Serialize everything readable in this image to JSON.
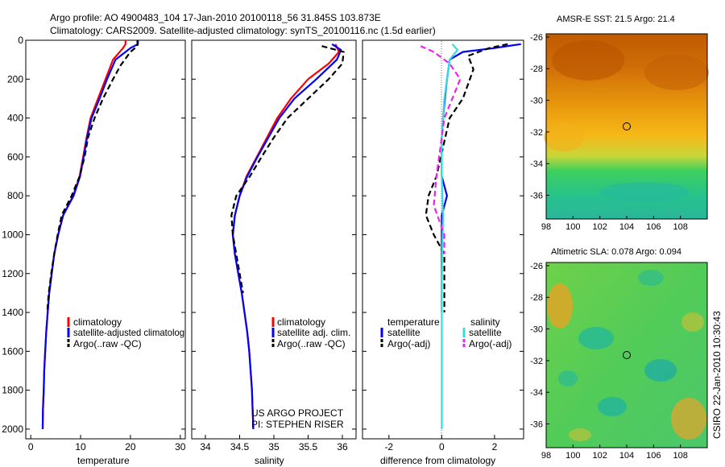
{
  "header": {
    "line1": "Argo profile: AO 4900483_104 17-Jan-2010 20100118_56 31.845S 103.873E",
    "line2": "Climatology: CARS2009. Satellite-adjusted climatology: synTS_20100116.nc (1.5d earlier)"
  },
  "colors": {
    "climatology": "#ff0000",
    "satellite": "#0000ff",
    "argo": "#000000",
    "sal_satellite": "#33dddd",
    "sal_argo": "#ee22ee"
  },
  "footer": {
    "project": "US ARGO PROJECT",
    "pi": "PI: STEPHEN RISER",
    "credit": "CSIRO 22-Jan-2010 10:30:43"
  },
  "legends": {
    "temp": [
      "climatology",
      "satellite-adjusted climatolog",
      "Argo(..raw -QC)"
    ],
    "sal": [
      "climatology",
      "satellite adj. clim.",
      "Argo(..raw -QC)"
    ],
    "diff_headers": [
      "temperature",
      "salinity"
    ],
    "diff_temp": [
      "satellite",
      "Argo(-adj)"
    ],
    "diff_sal": [
      "satellite",
      "Argo(-adj)"
    ]
  },
  "maps": {
    "sst_title": "AMSR-E SST: 21.5 Argo: 21.4",
    "sla_title": "Altimetric SLA: 0.078 Argo: 0.094",
    "lon_ticks": [
      "98",
      "100",
      "102",
      "104",
      "106",
      "108"
    ],
    "lat_ticks": [
      "-26",
      "-28",
      "-30",
      "-32",
      "-34",
      "-36"
    ],
    "float_lon": 103.873,
    "float_lat": -31.845
  },
  "chart_data": [
    {
      "type": "line",
      "xlabel": "temperature",
      "ylabel": "",
      "xlim": [
        -1,
        31
      ],
      "ylim": [
        2050,
        0
      ],
      "x_ticks": [
        "0",
        "10",
        "20",
        "30"
      ],
      "y_ticks": [
        "0",
        "200",
        "400",
        "600",
        "800",
        "1000",
        "1200",
        "1400",
        "1600",
        "1800",
        "2000"
      ],
      "series": [
        {
          "name": "climatology",
          "color": "#ff0000",
          "points": [
            [
              19.0,
              0
            ],
            [
              19.0,
              20
            ],
            [
              18.5,
              40
            ],
            [
              16.5,
              100
            ],
            [
              15,
              200
            ],
            [
              13.5,
              300
            ],
            [
              12,
              400
            ],
            [
              11.2,
              500
            ],
            [
              10.5,
              600
            ],
            [
              9.8,
              700
            ],
            [
              8.5,
              800
            ],
            [
              6.5,
              900
            ],
            [
              5.5,
              1000
            ],
            [
              4.7,
              1100
            ],
            [
              4.2,
              1200
            ],
            [
              3.7,
              1300
            ],
            [
              3.4,
              1400
            ],
            [
              3.1,
              1500
            ],
            [
              2.9,
              1600
            ],
            [
              2.7,
              1700
            ],
            [
              2.6,
              1800
            ],
            [
              2.45,
              1900
            ],
            [
              2.4,
              2000
            ]
          ]
        },
        {
          "name": "satellite-adjusted climatolog",
          "color": "#0000ff",
          "points": [
            [
              21.5,
              0
            ],
            [
              21.5,
              20
            ],
            [
              20,
              40
            ],
            [
              17,
              100
            ],
            [
              15.3,
              200
            ],
            [
              13.8,
              300
            ],
            [
              12.2,
              400
            ],
            [
              11.3,
              500
            ],
            [
              10.6,
              600
            ],
            [
              9.9,
              700
            ],
            [
              8.6,
              800
            ],
            [
              6.5,
              900
            ],
            [
              5.5,
              1000
            ],
            [
              4.7,
              1100
            ],
            [
              4.2,
              1200
            ],
            [
              3.7,
              1300
            ],
            [
              3.4,
              1400
            ],
            [
              3.1,
              1500
            ],
            [
              2.9,
              1600
            ],
            [
              2.7,
              1700
            ],
            [
              2.6,
              1800
            ],
            [
              2.45,
              1900
            ],
            [
              2.4,
              2000
            ]
          ]
        },
        {
          "name": "Argo(..raw -QC)",
          "color": "#000000",
          "dashed": true,
          "points": [
            [
              21.4,
              0
            ],
            [
              21.4,
              30
            ],
            [
              20,
              60
            ],
            [
              18,
              130
            ],
            [
              16.5,
              200
            ],
            [
              14.5,
              300
            ],
            [
              12.8,
              400
            ],
            [
              11.5,
              500
            ],
            [
              10.8,
              600
            ],
            [
              9.8,
              700
            ],
            [
              8.2,
              800
            ],
            [
              6.2,
              900
            ],
            [
              5.4,
              1000
            ],
            [
              4.7,
              1100
            ],
            [
              4.1,
              1200
            ],
            [
              3.6,
              1300
            ],
            [
              3.3,
              1400
            ]
          ]
        }
      ]
    },
    {
      "type": "line",
      "xlabel": "salinity",
      "ylabel": "",
      "xlim": [
        33.8,
        36.2
      ],
      "ylim": [
        2050,
        0
      ],
      "x_ticks": [
        "34",
        "34.5",
        "35",
        "35.5",
        "36"
      ],
      "series": [
        {
          "name": "climatology",
          "color": "#ff0000",
          "points": [
            [
              35.9,
              20
            ],
            [
              35.95,
              60
            ],
            [
              35.8,
              120
            ],
            [
              35.5,
              200
            ],
            [
              35.25,
              300
            ],
            [
              35.05,
              400
            ],
            [
              34.9,
              500
            ],
            [
              34.75,
              600
            ],
            [
              34.6,
              700
            ],
            [
              34.5,
              800
            ],
            [
              34.43,
              900
            ],
            [
              34.4,
              1000
            ],
            [
              34.43,
              1100
            ],
            [
              34.48,
              1200
            ],
            [
              34.53,
              1300
            ],
            [
              34.57,
              1400
            ],
            [
              34.61,
              1500
            ],
            [
              34.64,
              1600
            ],
            [
              34.66,
              1700
            ],
            [
              34.68,
              1800
            ],
            [
              34.69,
              1900
            ],
            [
              34.7,
              2000
            ]
          ]
        },
        {
          "name": "satellite adj. clim.",
          "color": "#0000ff",
          "points": [
            [
              35.85,
              20
            ],
            [
              35.98,
              50
            ],
            [
              35.92,
              100
            ],
            [
              35.62,
              200
            ],
            [
              35.3,
              300
            ],
            [
              35.08,
              400
            ],
            [
              34.92,
              500
            ],
            [
              34.76,
              600
            ],
            [
              34.61,
              700
            ],
            [
              34.5,
              800
            ],
            [
              34.43,
              900
            ],
            [
              34.4,
              1000
            ],
            [
              34.43,
              1100
            ],
            [
              34.48,
              1200
            ],
            [
              34.53,
              1300
            ],
            [
              34.57,
              1400
            ],
            [
              34.61,
              1500
            ],
            [
              34.64,
              1600
            ],
            [
              34.66,
              1700
            ],
            [
              34.68,
              1800
            ],
            [
              34.69,
              1900
            ],
            [
              34.7,
              2000
            ]
          ]
        },
        {
          "name": "Argo(..raw -QC)",
          "color": "#000000",
          "dashed": true,
          "points": [
            [
              35.7,
              30
            ],
            [
              36.02,
              60
            ],
            [
              36.0,
              120
            ],
            [
              35.8,
              200
            ],
            [
              35.5,
              300
            ],
            [
              35.2,
              400
            ],
            [
              35.0,
              500
            ],
            [
              34.82,
              600
            ],
            [
              34.65,
              700
            ],
            [
              34.45,
              800
            ],
            [
              34.38,
              900
            ],
            [
              34.4,
              1000
            ],
            [
              34.45,
              1100
            ],
            [
              34.5,
              1200
            ],
            [
              34.55,
              1300
            ]
          ]
        }
      ]
    },
    {
      "type": "line",
      "xlabel": "difference from climatology",
      "ylabel": "",
      "xlim": [
        -3,
        3.1
      ],
      "ylim": [
        2050,
        0
      ],
      "x_ticks": [
        "-2",
        "0",
        "2"
      ],
      "series": [
        {
          "name": "temperature satellite",
          "color": "#0000ff",
          "points": [
            [
              3.0,
              20
            ],
            [
              2.0,
              40
            ],
            [
              0.8,
              60
            ],
            [
              0.3,
              100
            ],
            [
              0.25,
              150
            ],
            [
              0.2,
              200
            ],
            [
              0.12,
              300
            ],
            [
              0.05,
              400
            ],
            [
              0.0,
              500
            ],
            [
              0.0,
              600
            ],
            [
              0.0,
              700
            ],
            [
              0.2,
              800
            ],
            [
              0.0,
              900
            ],
            [
              0.0,
              1000
            ],
            [
              0.0,
              1100
            ],
            [
              0.0,
              1200
            ],
            [
              0.0,
              1300
            ],
            [
              0.0,
              1400
            ]
          ]
        },
        {
          "name": "temperature Argo(-adj)",
          "color": "#000000",
          "dashed": true,
          "points": [
            [
              2.5,
              20
            ],
            [
              1.8,
              40
            ],
            [
              1.0,
              80
            ],
            [
              1.2,
              150
            ],
            [
              0.8,
              300
            ],
            [
              0.3,
              400
            ],
            [
              -0.2,
              700
            ],
            [
              -0.5,
              800
            ],
            [
              -0.6,
              900
            ],
            [
              -0.3,
              1000
            ],
            [
              0.1,
              1100
            ],
            [
              0.1,
              1400
            ]
          ]
        },
        {
          "name": "salinity satellite",
          "color": "#33dddd",
          "points": [
            [
              0.4,
              20
            ],
            [
              0.6,
              50
            ],
            [
              0.3,
              100
            ],
            [
              0.2,
              200
            ],
            [
              0.1,
              300
            ],
            [
              0.05,
              400
            ],
            [
              0.0,
              500
            ],
            [
              0.0,
              700
            ],
            [
              0.05,
              900
            ],
            [
              0.02,
              1100
            ],
            [
              0.0,
              1300
            ],
            [
              0.0,
              1600
            ],
            [
              0.0,
              2000
            ]
          ]
        },
        {
          "name": "salinity Argo(-adj)",
          "color": "#ee22ee",
          "dashed": true,
          "points": [
            [
              -0.8,
              30
            ],
            [
              -0.3,
              60
            ],
            [
              0.3,
              120
            ],
            [
              0.7,
              200
            ],
            [
              0.4,
              300
            ],
            [
              0.1,
              400
            ],
            [
              0.0,
              500
            ],
            [
              -0.2,
              700
            ],
            [
              -0.3,
              850
            ],
            [
              0.1,
              1000
            ],
            [
              0.1,
              1100
            ]
          ]
        }
      ]
    }
  ]
}
